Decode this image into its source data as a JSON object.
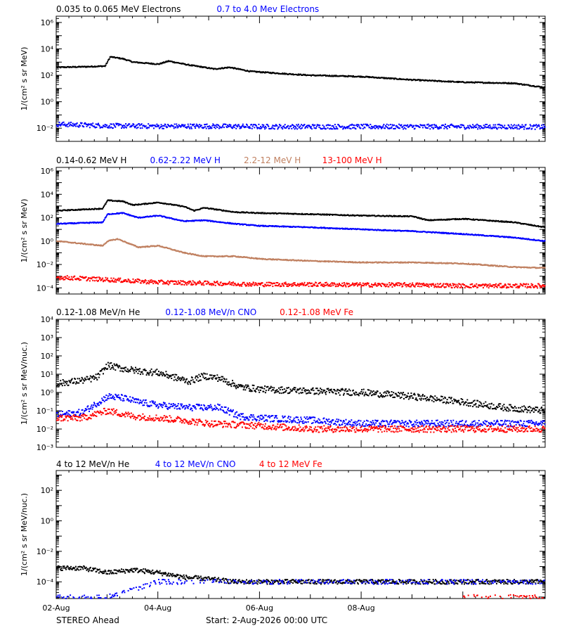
{
  "chart_data": [
    {
      "type": "scatter",
      "ylabel": "1/(cm² s sr MeV)",
      "y_scale": "log",
      "ylim": [
        0.001,
        3000000
      ],
      "y_ticks": [
        {
          "value": 0.01,
          "label": "10⁻²"
        },
        {
          "value": 1,
          "label": "10⁰"
        },
        {
          "value": 100,
          "label": "10²"
        },
        {
          "value": 10000,
          "label": "10⁴"
        },
        {
          "value": 1000000,
          "label": "10⁶"
        }
      ],
      "series": [
        {
          "name": "0.035 to 0.065 MeV Electrons",
          "color": "#000000",
          "points": [
            [
              0,
              400
            ],
            [
              0.6,
              450
            ],
            [
              0.95,
              500
            ],
            [
              1.05,
              2500
            ],
            [
              1.3,
              1800
            ],
            [
              1.5,
              1000
            ],
            [
              2.0,
              700
            ],
            [
              2.2,
              1200
            ],
            [
              2.6,
              600
            ],
            [
              2.9,
              400
            ],
            [
              3.1,
              300
            ],
            [
              3.4,
              400
            ],
            [
              3.8,
              200
            ],
            [
              4.5,
              130
            ],
            [
              5.0,
              100
            ],
            [
              6.0,
              80
            ],
            [
              7.0,
              45
            ],
            [
              8.0,
              30
            ],
            [
              9.0,
              25
            ],
            [
              9.6,
              12
            ]
          ]
        },
        {
          "name": "0.7 to 4.0 Mev Electrons",
          "color": "#0000ff",
          "points": [
            [
              0,
              0.02
            ],
            [
              1,
              0.015
            ],
            [
              2,
              0.014
            ],
            [
              3,
              0.014
            ],
            [
              4,
              0.013
            ],
            [
              5,
              0.013
            ],
            [
              6,
              0.013
            ],
            [
              7,
              0.013
            ],
            [
              8,
              0.013
            ],
            [
              9,
              0.013
            ],
            [
              9.6,
              0.012
            ]
          ]
        }
      ]
    },
    {
      "type": "scatter",
      "ylabel": "1/(cm² s sr MeV)",
      "y_scale": "log",
      "ylim": [
        3e-05,
        2000000
      ],
      "y_ticks": [
        {
          "value": 0.0001,
          "label": "10⁻⁴"
        },
        {
          "value": 0.01,
          "label": "10⁻²"
        },
        {
          "value": 1,
          "label": "10⁰"
        },
        {
          "value": 100,
          "label": "10²"
        },
        {
          "value": 10000,
          "label": "10⁴"
        },
        {
          "value": 1000000,
          "label": "10⁶"
        }
      ],
      "series": [
        {
          "name": "0.14-0.62 MeV H",
          "color": "#000000",
          "points": [
            [
              0,
              400
            ],
            [
              0.9,
              600
            ],
            [
              1.0,
              3000
            ],
            [
              1.3,
              2500
            ],
            [
              1.5,
              1200
            ],
            [
              2.0,
              2000
            ],
            [
              2.5,
              900
            ],
            [
              2.7,
              400
            ],
            [
              2.9,
              700
            ],
            [
              3.5,
              300
            ],
            [
              4.0,
              250
            ],
            [
              5.0,
              200
            ],
            [
              6.0,
              150
            ],
            [
              7.0,
              130
            ],
            [
              7.3,
              60
            ],
            [
              8.0,
              80
            ],
            [
              9.0,
              40
            ],
            [
              9.6,
              15
            ]
          ]
        },
        {
          "name": "0.62-2.22 MeV H",
          "color": "#0000ff",
          "points": [
            [
              0,
              30
            ],
            [
              0.9,
              40
            ],
            [
              1.0,
              200
            ],
            [
              1.3,
              250
            ],
            [
              1.6,
              100
            ],
            [
              2.0,
              150
            ],
            [
              2.5,
              50
            ],
            [
              2.9,
              60
            ],
            [
              3.5,
              30
            ],
            [
              4.0,
              20
            ],
            [
              5.0,
              15
            ],
            [
              6.0,
              10
            ],
            [
              7.0,
              7
            ],
            [
              8.0,
              4
            ],
            [
              9.0,
              2
            ],
            [
              9.6,
              1
            ]
          ]
        },
        {
          "name": "2.2-12 MeV H",
          "color": "#c08060",
          "points": [
            [
              0,
              1
            ],
            [
              0.9,
              0.4
            ],
            [
              1.0,
              1
            ],
            [
              1.2,
              1.5
            ],
            [
              1.6,
              0.3
            ],
            [
              2.0,
              0.4
            ],
            [
              2.5,
              0.1
            ],
            [
              2.9,
              0.05
            ],
            [
              3.5,
              0.05
            ],
            [
              4.0,
              0.03
            ],
            [
              5.0,
              0.02
            ],
            [
              6.0,
              0.015
            ],
            [
              7.0,
              0.015
            ],
            [
              8.0,
              0.012
            ],
            [
              9.0,
              0.006
            ],
            [
              9.6,
              0.005
            ]
          ]
        },
        {
          "name": "13-100 MeV H",
          "color": "#ff0000",
          "points": [
            [
              0,
              0.0008
            ],
            [
              1,
              0.0005
            ],
            [
              2,
              0.0003
            ],
            [
              3,
              0.00025
            ],
            [
              4,
              0.0002
            ],
            [
              5,
              0.0002
            ],
            [
              6,
              0.00018
            ],
            [
              7,
              0.00018
            ],
            [
              8,
              0.00015
            ],
            [
              9,
              0.00015
            ],
            [
              9.6,
              0.00015
            ]
          ]
        }
      ]
    },
    {
      "type": "scatter",
      "ylabel": "1/(cm² s sr MeV/nuc.)",
      "y_scale": "log",
      "ylim": [
        0.001,
        10000
      ],
      "y_ticks": [
        {
          "value": 0.001,
          "label": "10⁻³"
        },
        {
          "value": 0.01,
          "label": "10⁻²"
        },
        {
          "value": 0.1,
          "label": "10⁻¹"
        },
        {
          "value": 1,
          "label": "10⁰"
        },
        {
          "value": 10,
          "label": "10¹"
        },
        {
          "value": 100,
          "label": "10²"
        },
        {
          "value": 1000,
          "label": "10³"
        },
        {
          "value": 10000,
          "label": "10⁴"
        }
      ],
      "series": [
        {
          "name": "0.12-1.08 MeV/n He",
          "color": "#000000",
          "points": [
            [
              0,
              3
            ],
            [
              0.6,
              5
            ],
            [
              0.8,
              7
            ],
            [
              1.0,
              30
            ],
            [
              1.3,
              20
            ],
            [
              1.6,
              15
            ],
            [
              2.0,
              12
            ],
            [
              2.6,
              4
            ],
            [
              2.9,
              8
            ],
            [
              3.2,
              6
            ],
            [
              3.6,
              2
            ],
            [
              4.0,
              1.5
            ],
            [
              5.0,
              1.2
            ],
            [
              6.0,
              1.0
            ],
            [
              7.0,
              0.6
            ],
            [
              8.0,
              0.3
            ],
            [
              8.8,
              0.15
            ],
            [
              9.6,
              0.1
            ]
          ]
        },
        {
          "name": "0.12-1.08 MeV/n CNO",
          "color": "#0000ff",
          "points": [
            [
              0,
              0.06
            ],
            [
              0.5,
              0.08
            ],
            [
              1.0,
              0.6
            ],
            [
              1.3,
              0.5
            ],
            [
              1.6,
              0.3
            ],
            [
              2.0,
              0.2
            ],
            [
              2.6,
              0.15
            ],
            [
              3.2,
              0.15
            ],
            [
              3.6,
              0.05
            ],
            [
              4.0,
              0.04
            ],
            [
              5.0,
              0.03
            ],
            [
              6.0,
              0.02
            ],
            [
              7.0,
              0.02
            ],
            [
              8.0,
              0.02
            ],
            [
              9.0,
              0.02
            ],
            [
              9.6,
              0.02
            ]
          ]
        },
        {
          "name": "0.12-1.08 MeV Fe",
          "color": "#ff0000",
          "points": [
            [
              0,
              0.04
            ],
            [
              0.5,
              0.04
            ],
            [
              1.0,
              0.1
            ],
            [
              1.5,
              0.05
            ],
            [
              2.0,
              0.04
            ],
            [
              2.5,
              0.03
            ],
            [
              3.0,
              0.02
            ],
            [
              4.0,
              0.015
            ],
            [
              5.0,
              0.01
            ],
            [
              6.0,
              0.01
            ],
            [
              7.0,
              0.01
            ],
            [
              8.0,
              0.01
            ],
            [
              9.0,
              0.01
            ],
            [
              9.6,
              0.01
            ]
          ]
        }
      ]
    },
    {
      "type": "scatter",
      "ylabel": "1/(cm² s sr MeV/nuc.)",
      "y_scale": "log",
      "ylim": [
        8e-06,
        2000
      ],
      "y_ticks": [
        {
          "value": 0.0001,
          "label": "10⁻⁴"
        },
        {
          "value": 0.01,
          "label": "10⁻²"
        },
        {
          "value": 1,
          "label": "10⁰"
        },
        {
          "value": 100,
          "label": "10²"
        }
      ],
      "series": [
        {
          "name": "4 to 12 MeV/n He",
          "color": "#000000",
          "points": [
            [
              0,
              0.0008
            ],
            [
              0.5,
              0.0008
            ],
            [
              1.0,
              0.0004
            ],
            [
              1.5,
              0.0006
            ],
            [
              2.0,
              0.0004
            ],
            [
              2.5,
              0.0002
            ],
            [
              3.0,
              0.00015
            ],
            [
              3.5,
              0.0001
            ],
            [
              4.0,
              0.0001
            ],
            [
              5.0,
              0.0001
            ],
            [
              6.0,
              0.0001
            ],
            [
              7.0,
              0.0001
            ],
            [
              8.0,
              0.0001
            ],
            [
              9.0,
              0.0001
            ],
            [
              9.6,
              0.0001
            ]
          ]
        },
        {
          "name": "4 to 12 MeV/n CNO",
          "color": "#0000ff",
          "points": [
            [
              0,
              1e-05
            ],
            [
              1.0,
              1e-05
            ],
            [
              2.0,
              0.0001
            ],
            [
              4.0,
              0.0001
            ],
            [
              6.0,
              0.0001
            ],
            [
              8.0,
              0.0001
            ],
            [
              9.6,
              0.0001
            ]
          ]
        },
        {
          "name": "4 to 12 MeV Fe",
          "color": "#ff0000",
          "points": [
            [
              8.0,
              1e-05
            ],
            [
              9.6,
              1e-05
            ]
          ]
        }
      ]
    }
  ],
  "x_axis": {
    "xlim": [
      0,
      9.62
    ],
    "major_ticks": [
      {
        "day": 0,
        "label": "02-Aug"
      },
      {
        "day": 2,
        "label": "04-Aug"
      },
      {
        "day": 4,
        "label": "06-Aug"
      },
      {
        "day": 6,
        "label": "08-Aug"
      }
    ]
  },
  "footer": {
    "spacecraft": "STEREO Ahead",
    "start": "Start:  2-Aug-2026 00:00 UTC"
  }
}
